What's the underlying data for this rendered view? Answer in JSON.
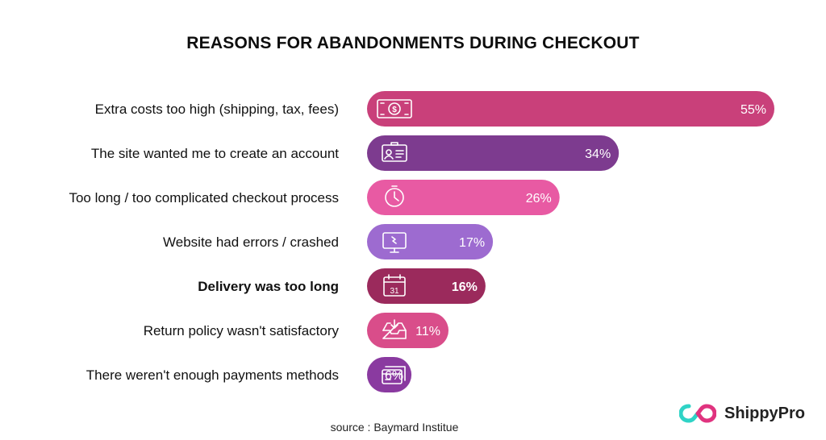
{
  "chart_data": {
    "type": "bar",
    "orientation": "horizontal",
    "title": "REASONS FOR ABANDONMENTS DURING CHECKOUT",
    "categories": [
      "Extra costs too high (shipping, tax, fees)",
      "The site wanted me to create an account",
      "Too long / too complicated checkout process",
      "Website had errors / crashed",
      "Delivery was too long",
      "Return policy wasn't satisfactory",
      "There weren't enough payments methods"
    ],
    "values": [
      55,
      34,
      26,
      17,
      16,
      11,
      6
    ],
    "value_labels": [
      "55%",
      "34%",
      "26%",
      "17%",
      "16%",
      "11%",
      "6%"
    ],
    "highlighted": [
      false,
      false,
      false,
      false,
      true,
      false,
      false
    ],
    "colors": [
      "#c9407a",
      "#7d3b8f",
      "#e85aa3",
      "#9d6bd0",
      "#9b2a5c",
      "#d94d8a",
      "#8a3aa0"
    ],
    "icons": [
      "money-icon",
      "id-card-icon",
      "clock-icon",
      "monitor-error-icon",
      "calendar-icon",
      "inbox-return-icon",
      "credit-cards-icon"
    ],
    "xlim": [
      0,
      55
    ],
    "xlabel": "",
    "ylabel": ""
  },
  "source_text": "source : Baymard Institue",
  "brand": {
    "name": "ShippyPro",
    "colors": [
      "#2fd3c6",
      "#e0337f"
    ]
  }
}
